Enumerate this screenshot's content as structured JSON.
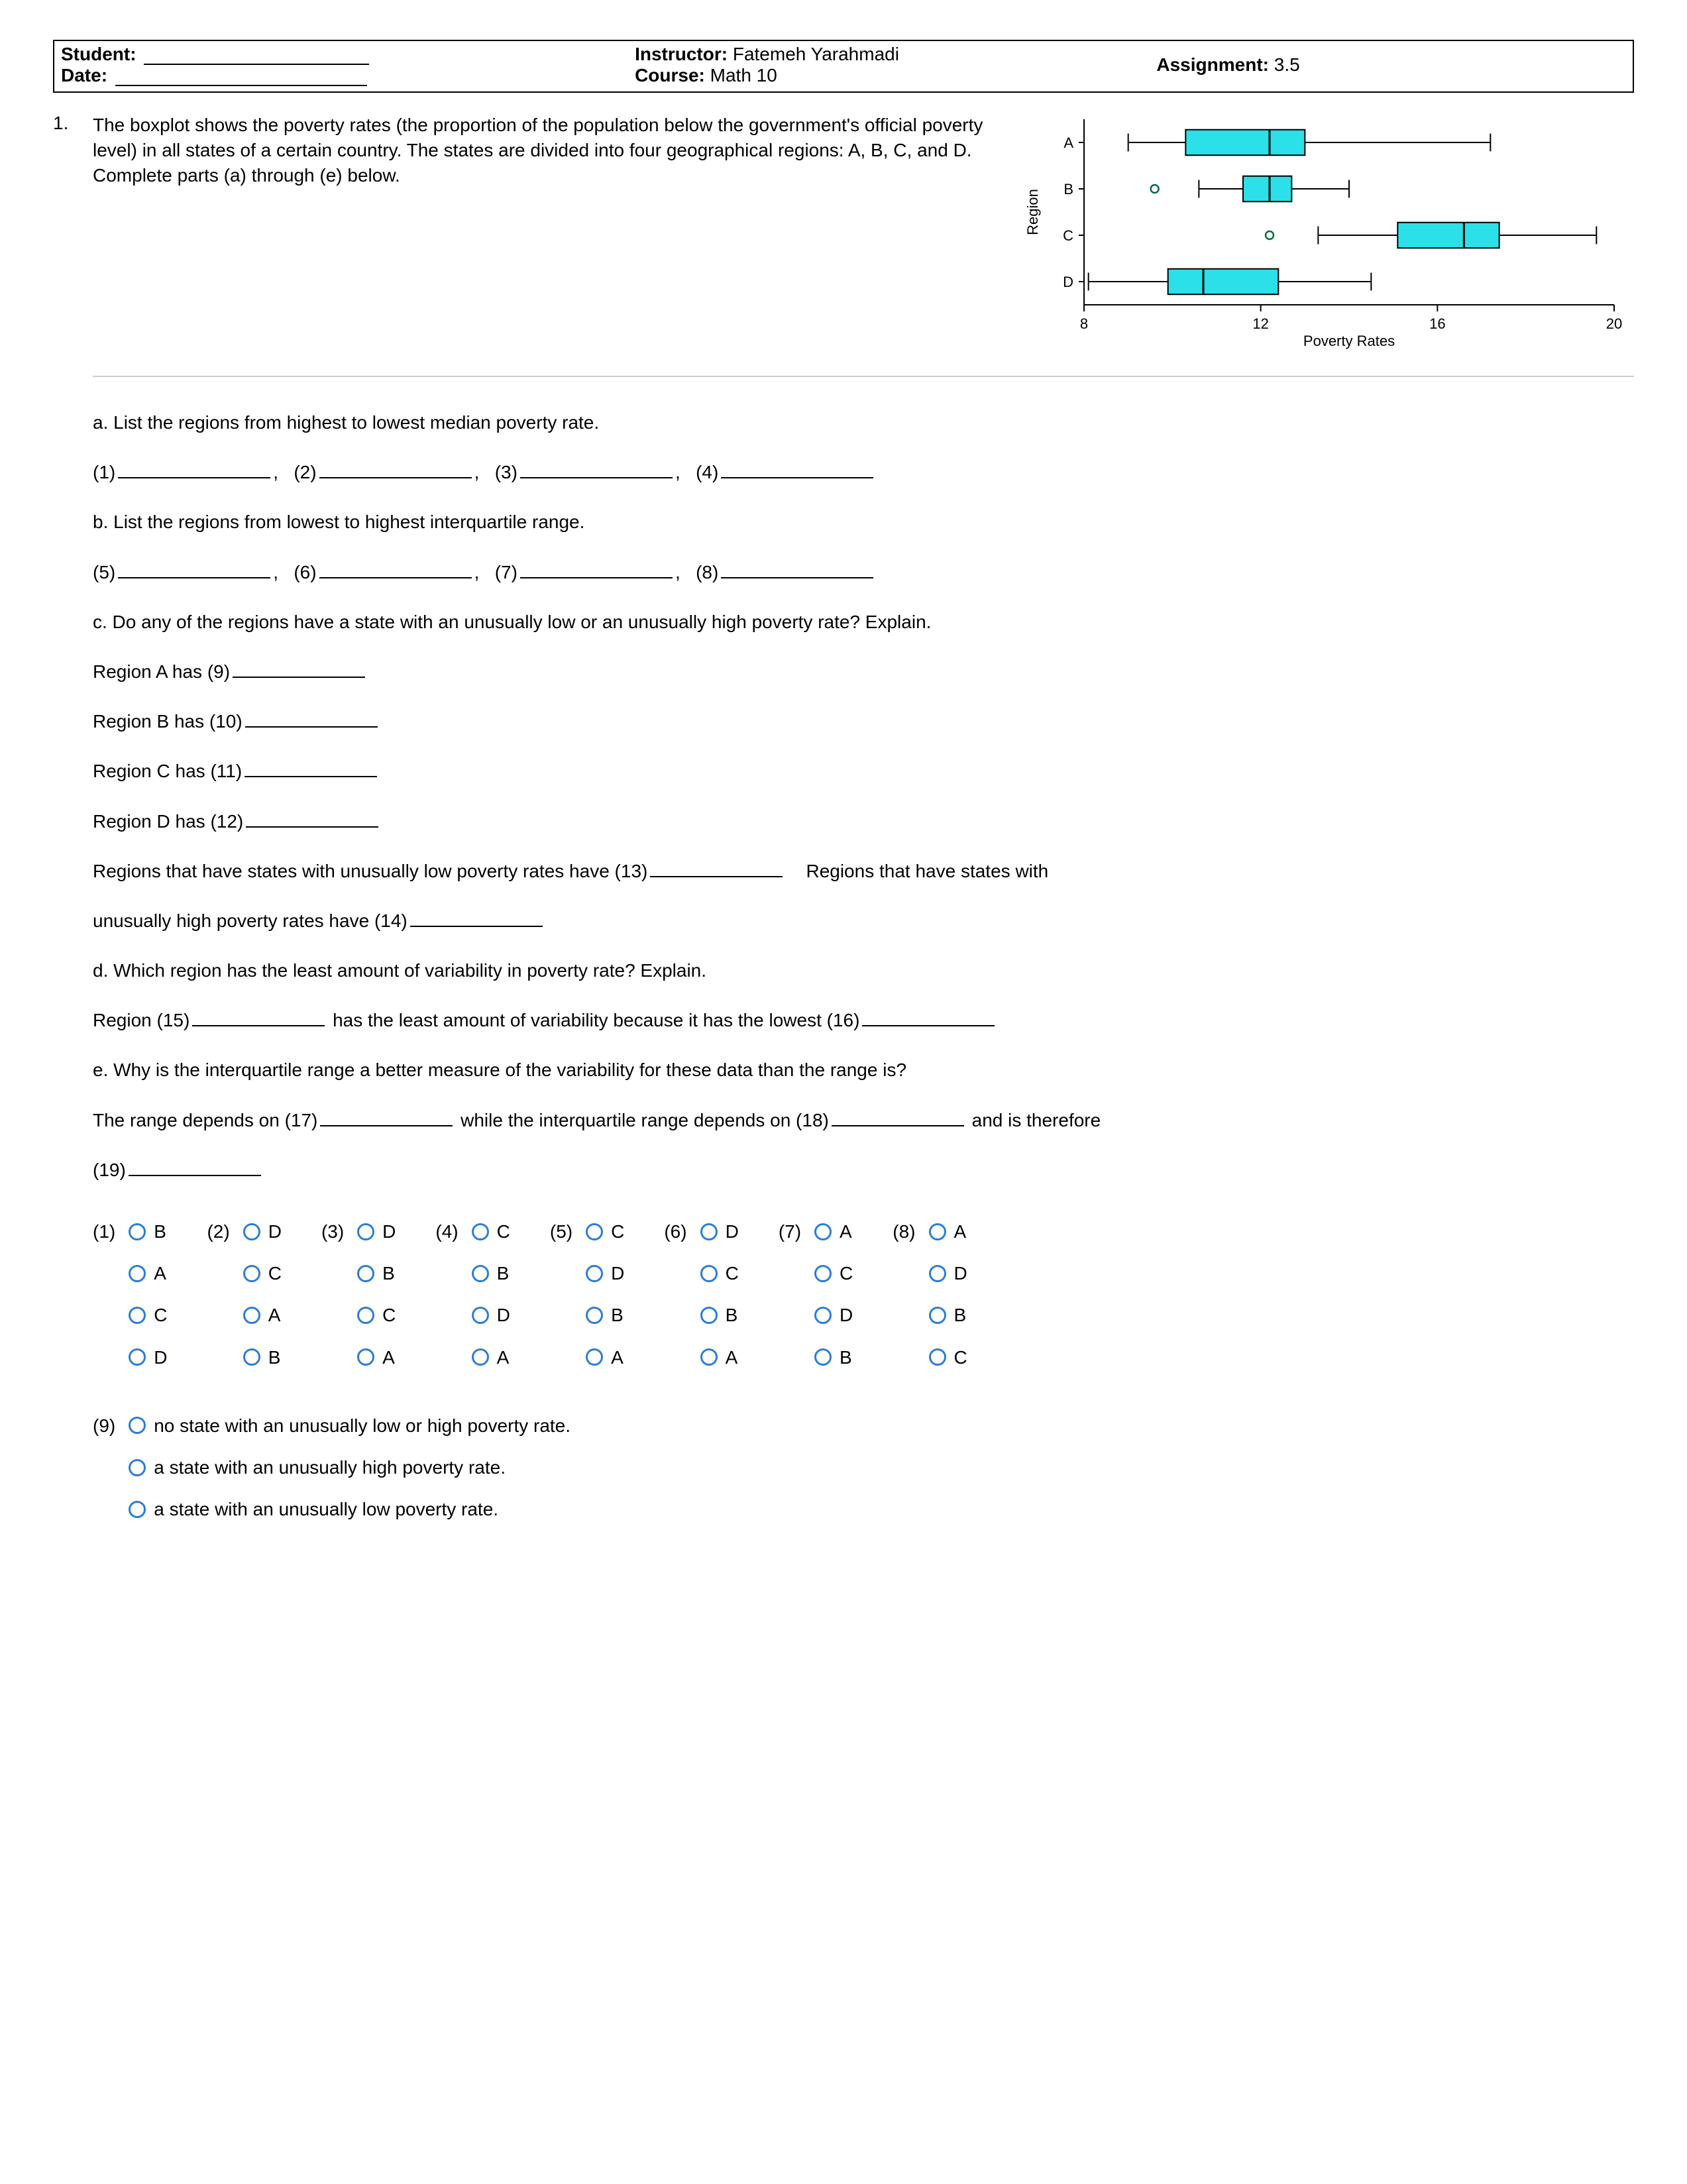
{
  "header": {
    "student_label": "Student:",
    "date_label": "Date:",
    "instructor_label": "Instructor:",
    "instructor_value": "Fatemeh Yarahmadi",
    "course_label": "Course:",
    "course_value": "Math 10",
    "assignment_label": "Assignment:",
    "assignment_value": "3.5"
  },
  "question": {
    "number": "1.",
    "prompt": "The boxplot shows the poverty rates (the proportion of the population below the government's official poverty level) in all states of a certain country. The states are divided into four geographical regions: A, B, C, and D. Complete parts (a) through (e) below."
  },
  "chart": {
    "type": "boxplot",
    "orientation": "horizontal",
    "ylabel": "Region",
    "xlabel": "Poverty Rates",
    "xlim": [
      8,
      20
    ],
    "xticks": [
      8,
      12,
      16,
      20
    ],
    "categories": [
      "A",
      "B",
      "C",
      "D"
    ],
    "box_fill": "#2be0e8",
    "box_stroke": "#000000",
    "outlier_stroke": "#0a6a40",
    "background": "#ffffff",
    "axis_color": "#000000",
    "boxes": {
      "A": {
        "whisker_low": 9.0,
        "q1": 10.3,
        "median": 12.2,
        "q3": 13.0,
        "whisker_high": 17.2,
        "outliers": []
      },
      "B": {
        "whisker_low": 10.6,
        "q1": 11.6,
        "median": 12.2,
        "q3": 12.7,
        "whisker_high": 14.0,
        "outliers": [
          9.6
        ]
      },
      "C": {
        "whisker_low": 13.3,
        "q1": 15.1,
        "median": 16.6,
        "q3": 17.4,
        "whisker_high": 19.6,
        "outliers": [
          12.2
        ]
      },
      "D": {
        "whisker_low": 8.1,
        "q1": 9.9,
        "median": 10.7,
        "q3": 12.4,
        "whisker_high": 14.5,
        "outliers": []
      }
    },
    "label_fontsize": 22,
    "tick_fontsize": 22
  },
  "parts": {
    "a": "a. List the regions from highest to lowest median poverty rate.",
    "b": "b. List the regions from lowest to highest interquartile range.",
    "c": "c. Do any of the regions have a state with an unusually low or an unusually high poverty rate? Explain.",
    "d": "d. Which region has the least amount of variability in poverty rate? Explain.",
    "e": "e. Why is the interquartile range a better measure of the variability for these data than the range is?",
    "region_a_has": "Region A has",
    "region_b_has": "Region B has",
    "region_c_has": "Region C has",
    "region_d_has": "Region D has",
    "low_sentence_1": "Regions that have states with unusually low poverty rates have",
    "low_sentence_2": "Regions that have states with",
    "high_sentence": "unusually high poverty rates have",
    "d_sentence_1": "Region",
    "d_sentence_2": "has the least amount of variability because it has the lowest",
    "e_sentence_1": "The range depends on",
    "e_sentence_2": "while the interquartile range depends on",
    "e_sentence_3": "and is therefore"
  },
  "blanks": {
    "n1": "(1)",
    "n2": "(2)",
    "n3": "(3)",
    "n4": "(4)",
    "n5": "(5)",
    "n6": "(6)",
    "n7": "(7)",
    "n8": "(8)",
    "n9": "(9)",
    "n10": "(10)",
    "n11": "(11)",
    "n12": "(12)",
    "n13": "(13)",
    "n14": "(14)",
    "n15": "(15)",
    "n16": "(16)",
    "n17": "(17)",
    "n18": "(18)",
    "n19": "(19)"
  },
  "mc": {
    "groups": [
      {
        "num": "(1)",
        "opts": [
          "B",
          "A",
          "C",
          "D"
        ]
      },
      {
        "num": "(2)",
        "opts": [
          "D",
          "C",
          "A",
          "B"
        ]
      },
      {
        "num": "(3)",
        "opts": [
          "D",
          "B",
          "C",
          "A"
        ]
      },
      {
        "num": "(4)",
        "opts": [
          "C",
          "B",
          "D",
          "A"
        ]
      },
      {
        "num": "(5)",
        "opts": [
          "C",
          "D",
          "B",
          "A"
        ]
      },
      {
        "num": "(6)",
        "opts": [
          "D",
          "C",
          "B",
          "A"
        ]
      },
      {
        "num": "(7)",
        "opts": [
          "A",
          "C",
          "D",
          "B"
        ]
      },
      {
        "num": "(8)",
        "opts": [
          "A",
          "D",
          "B",
          "C"
        ]
      }
    ],
    "group9": {
      "num": "(9)",
      "opts": [
        "no state with an unusually low or high poverty rate.",
        "a state with an unusually high poverty rate.",
        "a state with an unusually low poverty rate."
      ]
    }
  },
  "comma": ","
}
